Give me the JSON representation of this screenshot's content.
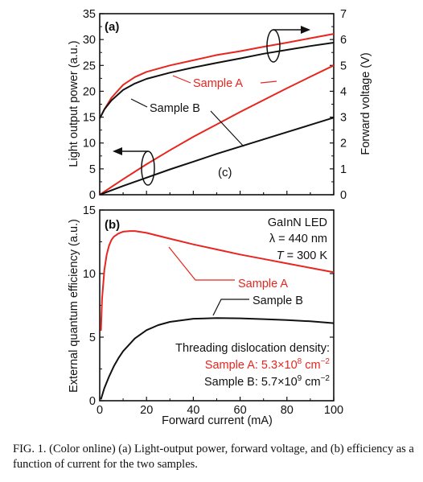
{
  "colors": {
    "sample_a": "#e8251f",
    "sample_b": "#111111",
    "axis": "#111111"
  },
  "chart_data": [
    {
      "panel": "(a)",
      "type": "line",
      "xlim": [
        0,
        100
      ],
      "ylim_left": [
        0,
        35
      ],
      "ylim_right": [
        0,
        7
      ],
      "ylabel_left": "Light output power (a.u.)",
      "ylabel_right": "Forward voltage (V)",
      "yticks_left": [
        "0",
        "5",
        "10",
        "15",
        "20",
        "25",
        "30",
        "35"
      ],
      "yticks_right": [
        "0",
        "1",
        "2",
        "3",
        "4",
        "5",
        "6",
        "7"
      ],
      "annotation": "(c)",
      "series": [
        {
          "name": "Sample A",
          "quantity": "light output power",
          "axis": "left",
          "x": [
            0,
            10,
            20,
            30,
            40,
            50,
            60,
            70,
            80,
            90,
            100
          ],
          "y": [
            0,
            3.0,
            5.9,
            8.6,
            11.2,
            13.6,
            16.0,
            18.3,
            20.6,
            22.8,
            25.0
          ]
        },
        {
          "name": "Sample B",
          "quantity": "light output power",
          "axis": "left",
          "x": [
            0,
            10,
            20,
            30,
            40,
            50,
            60,
            70,
            80,
            90,
            100
          ],
          "y": [
            0,
            1.7,
            3.3,
            4.9,
            6.4,
            7.9,
            9.3,
            10.7,
            12.1,
            13.5,
            14.9
          ]
        },
        {
          "name": "Sample A",
          "quantity": "forward voltage",
          "axis": "right",
          "x": [
            0,
            2,
            5,
            10,
            15,
            20,
            30,
            40,
            50,
            60,
            70,
            80,
            90,
            100
          ],
          "y": [
            2.95,
            3.3,
            3.75,
            4.25,
            4.55,
            4.75,
            5.0,
            5.2,
            5.4,
            5.55,
            5.72,
            5.88,
            6.05,
            6.22
          ]
        },
        {
          "name": "Sample B",
          "quantity": "forward voltage",
          "axis": "right",
          "x": [
            0,
            2,
            5,
            10,
            15,
            20,
            30,
            40,
            50,
            60,
            70,
            80,
            90,
            100
          ],
          "y": [
            2.95,
            3.3,
            3.65,
            4.05,
            4.3,
            4.48,
            4.72,
            4.92,
            5.1,
            5.27,
            5.45,
            5.6,
            5.75,
            5.88
          ]
        }
      ]
    },
    {
      "panel": "(b)",
      "type": "line",
      "xlim": [
        0,
        100
      ],
      "ylim": [
        0,
        15
      ],
      "xlabel": "Forward current (mA)",
      "ylabel": "External quantum efficiency (a.u.)",
      "xticks": [
        "0",
        "20",
        "40",
        "60",
        "80",
        "100"
      ],
      "yticks": [
        "0",
        "5",
        "10",
        "15"
      ],
      "annotations": {
        "material": "GaInN LED",
        "wavelength": "λ = 440 nm",
        "temperature_symbol": "T",
        "temperature_value": " = 300 K",
        "tdd_title": "Threading dislocation density:",
        "tdd_a_prefix": "Sample A: 5.3×10",
        "tdd_a_exp": "8",
        "tdd_a_unit": " cm",
        "tdd_a_unit_exp": "−2",
        "tdd_b_prefix": "Sample B: 5.7×10",
        "tdd_b_exp": "9",
        "tdd_b_unit": " cm",
        "tdd_b_unit_exp": "−2"
      },
      "series": [
        {
          "name": "Sample A",
          "x": [
            0.5,
            1,
            2,
            3,
            4,
            5,
            6,
            8,
            10,
            13,
            15,
            20,
            30,
            40,
            50,
            60,
            70,
            80,
            90,
            100
          ],
          "y": [
            5.5,
            8.0,
            10.3,
            11.5,
            12.2,
            12.65,
            12.9,
            13.15,
            13.3,
            13.35,
            13.35,
            13.2,
            12.75,
            12.3,
            11.9,
            11.5,
            11.15,
            10.8,
            10.45,
            10.1
          ]
        },
        {
          "name": "Sample B",
          "x": [
            0.5,
            1,
            2,
            4,
            6,
            8,
            10,
            15,
            20,
            25,
            30,
            40,
            50,
            60,
            70,
            80,
            90,
            100
          ],
          "y": [
            0.1,
            0.4,
            1.0,
            1.9,
            2.7,
            3.35,
            3.9,
            4.9,
            5.55,
            5.95,
            6.2,
            6.45,
            6.5,
            6.48,
            6.42,
            6.35,
            6.25,
            6.1
          ]
        }
      ]
    }
  ],
  "caption": "FIG. 1. (Color online) (a) Light-output power, forward voltage, and (b) efficiency as a function of current for the two samples."
}
